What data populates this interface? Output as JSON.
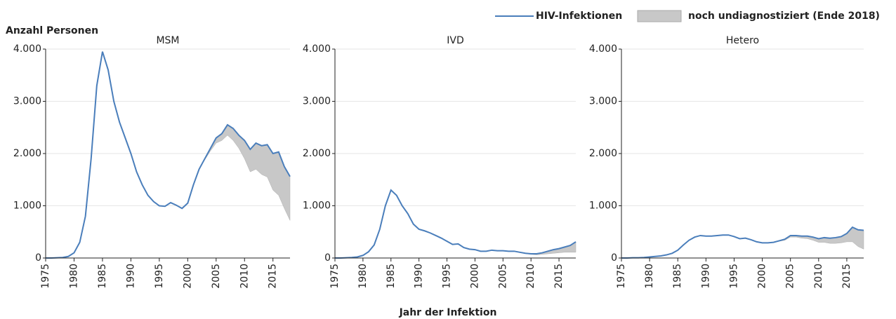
{
  "y_axis_label": "Anzahl Personen",
  "x_axis_label": "Jahr der Infektion",
  "chart_data": [
    {
      "type": "line",
      "title": "MSM",
      "x": [
        1975,
        1976,
        1977,
        1978,
        1979,
        1980,
        1981,
        1982,
        1983,
        1984,
        1985,
        1986,
        1987,
        1988,
        1989,
        1990,
        1991,
        1992,
        1993,
        1994,
        1995,
        1996,
        1997,
        1998,
        1999,
        2000,
        2001,
        2002,
        2003,
        2004,
        2005,
        2006,
        2007,
        2008,
        2009,
        2010,
        2011,
        2012,
        2013,
        2014,
        2015,
        2016,
        2017,
        2018
      ],
      "series": [
        {
          "name": "HIV-Infektionen",
          "color": "#4a7ebb",
          "values": [
            0,
            0,
            5,
            10,
            30,
            100,
            300,
            800,
            1900,
            3300,
            3950,
            3600,
            3000,
            2600,
            2300,
            2000,
            1650,
            1400,
            1200,
            1080,
            1000,
            990,
            1060,
            1010,
            950,
            1050,
            1400,
            1700,
            1900,
            2100,
            2300,
            2380,
            2550,
            2480,
            2350,
            2250,
            2080,
            2200,
            2150,
            2170,
            2000,
            2030,
            1750,
            1560
          ]
        },
        {
          "name": "noch undiagnostiziert (Ende 2018)",
          "color": "#c8c8c8",
          "values": [
            null,
            null,
            null,
            null,
            null,
            null,
            null,
            null,
            null,
            null,
            null,
            null,
            null,
            null,
            null,
            null,
            null,
            null,
            null,
            null,
            null,
            null,
            null,
            null,
            null,
            0,
            0,
            0,
            20,
            50,
            100,
            130,
            200,
            230,
            250,
            350,
            430,
            500,
            550,
            620,
            700,
            830,
            800,
            840
          ]
        }
      ],
      "xlim": [
        1975,
        2018
      ],
      "xticks": [
        1975,
        1980,
        1985,
        1990,
        1995,
        2000,
        2005,
        2010,
        2015
      ],
      "ylim": [
        0,
        4000
      ],
      "yticks": [
        0,
        {
          "value": 1000,
          "label": "1.000"
        },
        {
          "value": 2000,
          "label": "2.000"
        },
        {
          "value": 3000,
          "label": "3.000"
        },
        {
          "value": 4000,
          "label": "4.000"
        }
      ],
      "grid": true
    },
    {
      "type": "line",
      "title": "IVD",
      "x": [
        1975,
        1976,
        1977,
        1978,
        1979,
        1980,
        1981,
        1982,
        1983,
        1984,
        1985,
        1986,
        1987,
        1988,
        1989,
        1990,
        1991,
        1992,
        1993,
        1994,
        1995,
        1996,
        1997,
        1998,
        1999,
        2000,
        2001,
        2002,
        2003,
        2004,
        2005,
        2006,
        2007,
        2008,
        2009,
        2010,
        2011,
        2012,
        2013,
        2014,
        2015,
        2016,
        2017,
        2018
      ],
      "series": [
        {
          "name": "HIV-Infektionen",
          "color": "#4a7ebb",
          "values": [
            0,
            0,
            5,
            10,
            20,
            50,
            120,
            250,
            550,
            1000,
            1300,
            1200,
            1000,
            850,
            650,
            550,
            520,
            480,
            430,
            380,
            320,
            260,
            270,
            200,
            170,
            160,
            130,
            130,
            150,
            140,
            140,
            130,
            130,
            110,
            90,
            80,
            80,
            100,
            130,
            160,
            180,
            210,
            240,
            310
          ]
        },
        {
          "name": "noch undiagnostiziert (Ende 2018)",
          "color": "#c8c8c8",
          "values": [
            null,
            null,
            null,
            null,
            null,
            null,
            null,
            null,
            null,
            null,
            null,
            null,
            null,
            null,
            null,
            null,
            null,
            null,
            null,
            null,
            null,
            null,
            null,
            null,
            null,
            0,
            0,
            0,
            0,
            0,
            0,
            0,
            0,
            0,
            5,
            10,
            20,
            30,
            50,
            70,
            80,
            100,
            130,
            200
          ]
        }
      ],
      "xlim": [
        1975,
        2018
      ],
      "xticks": [
        1975,
        1980,
        1985,
        1990,
        1995,
        2000,
        2005,
        2010,
        2015
      ],
      "ylim": [
        0,
        4000
      ],
      "yticks": [
        0,
        {
          "value": 1000,
          "label": "1.000"
        },
        {
          "value": 2000,
          "label": "2.000"
        },
        {
          "value": 3000,
          "label": "3.000"
        },
        {
          "value": 4000,
          "label": "4.000"
        }
      ],
      "grid": true
    },
    {
      "type": "line",
      "title": "Hetero",
      "x": [
        1975,
        1976,
        1977,
        1978,
        1979,
        1980,
        1981,
        1982,
        1983,
        1984,
        1985,
        1986,
        1987,
        1988,
        1989,
        1990,
        1991,
        1992,
        1993,
        1994,
        1995,
        1996,
        1997,
        1998,
        1999,
        2000,
        2001,
        2002,
        2003,
        2004,
        2005,
        2006,
        2007,
        2008,
        2009,
        2010,
        2011,
        2012,
        2013,
        2014,
        2015,
        2016,
        2017,
        2018
      ],
      "series": [
        {
          "name": "HIV-Infektionen",
          "color": "#4a7ebb",
          "values": [
            0,
            0,
            5,
            5,
            10,
            20,
            30,
            40,
            60,
            90,
            150,
            250,
            340,
            400,
            430,
            420,
            420,
            430,
            440,
            440,
            410,
            370,
            380,
            350,
            310,
            290,
            290,
            300,
            330,
            360,
            430,
            430,
            420,
            420,
            400,
            370,
            390,
            380,
            390,
            410,
            470,
            590,
            540,
            530
          ]
        },
        {
          "name": "noch undiagnostiziert (Ende 2018)",
          "color": "#c8c8c8",
          "values": [
            null,
            null,
            null,
            null,
            null,
            null,
            null,
            null,
            null,
            null,
            null,
            null,
            null,
            null,
            null,
            null,
            null,
            null,
            null,
            null,
            null,
            null,
            null,
            null,
            null,
            0,
            0,
            0,
            10,
            20,
            30,
            30,
            40,
            50,
            60,
            70,
            90,
            100,
            110,
            120,
            160,
            280,
            320,
            360
          ]
        }
      ],
      "xlim": [
        1975,
        2018
      ],
      "xticks": [
        1975,
        1980,
        1985,
        1990,
        1995,
        2000,
        2005,
        2010,
        2015
      ],
      "ylim": [
        0,
        4000
      ],
      "yticks": [
        0,
        {
          "value": 1000,
          "label": "1.000"
        },
        {
          "value": 2000,
          "label": "2.000"
        },
        {
          "value": 3000,
          "label": "3.000"
        },
        {
          "value": 4000,
          "label": "4.000"
        }
      ],
      "grid": true
    }
  ]
}
